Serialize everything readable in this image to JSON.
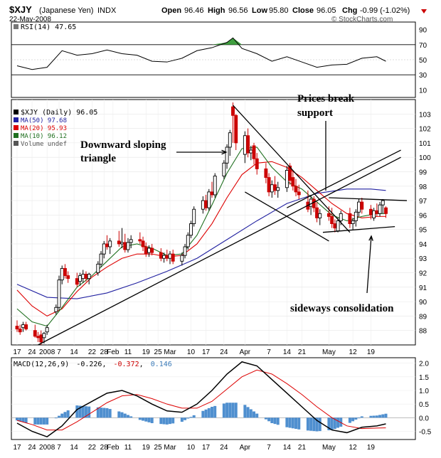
{
  "header": {
    "symbol": "$XJY",
    "name": "(Japanese Yen)",
    "exchange": "INDX",
    "date": "22-May-2008",
    "open_label": "Open",
    "open": "96.46",
    "high_label": "High",
    "high": "96.56",
    "low_label": "Low",
    "low": "95.80",
    "close_label": "Close",
    "close": "96.05",
    "chg_label": "Chg",
    "chg": "-0.99 (-1.02%)",
    "watermark": "© StockCharts.com"
  },
  "colors": {
    "up": "#000000",
    "down": "#cc0000",
    "ma50": "#2020a0",
    "ma20": "#dd0000",
    "ma10": "#207020",
    "macd_hist": "#4f8fcf",
    "rsi_overbought_fill": "#3f9f3f",
    "annotation": "#000000"
  },
  "rsi_panel": {
    "label": "RSI(14) 47.65",
    "ticks": [
      "90",
      "70",
      "50",
      "30",
      "10"
    ]
  },
  "price_panel": {
    "legend": [
      {
        "text": "$XJY (Daily) 96.05",
        "color": "#000000"
      },
      {
        "text": "MA(50) 97.68",
        "color": "#2020a0"
      },
      {
        "text": "MA(20) 95.93",
        "color": "#dd0000"
      },
      {
        "text": "MA(10) 96.12",
        "color": "#207020"
      },
      {
        "text": "Volume undef",
        "color": "#555555"
      }
    ],
    "ticks": [
      "103",
      "102",
      "101",
      "100",
      "99",
      "98",
      "97",
      "96",
      "95",
      "94",
      "93",
      "92",
      "91",
      "90",
      "89",
      "88"
    ]
  },
  "macd_panel": {
    "label": "MACD(12,26,9)",
    "values": [
      "-0.226",
      "-0.372",
      "0.146"
    ],
    "ticks": [
      "2.0",
      "1.5",
      "1.0",
      "0.5",
      "0.0",
      "-0.5"
    ]
  },
  "x_axis": {
    "labels": [
      "17",
      "24",
      "2008",
      "7",
      "14",
      "22",
      "28",
      "Feb",
      "11",
      "19",
      "25",
      "Mar",
      "10",
      "17",
      "24",
      "Apr",
      "7",
      "14",
      "21",
      "May",
      "12",
      "19"
    ]
  },
  "annotations": {
    "triangle": "Downward sloping\ntriangle",
    "break": "Prices break\nsupport",
    "consolidation": "sideways consolidation"
  },
  "chart_data": {
    "type": "candlestick",
    "title": "$XJY (Japanese Yen) INDX",
    "date": "22-May-2008",
    "y_range": [
      87,
      104
    ],
    "rsi_range": [
      0,
      100
    ],
    "macd_range": [
      -0.8,
      2.2
    ],
    "x_range_days": [
      0,
      130
    ],
    "candles": [
      {
        "d": 0,
        "o": 88.3,
        "h": 88.7,
        "l": 87.9,
        "c": 88.1
      },
      {
        "d": 1,
        "o": 88.1,
        "h": 88.4,
        "l": 87.7,
        "c": 87.9
      },
      {
        "d": 2,
        "o": 88.2,
        "h": 88.6,
        "l": 87.9,
        "c": 88.4
      },
      {
        "d": 3,
        "o": 88.4,
        "h": 88.6,
        "l": 88.0,
        "c": 88.1
      },
      {
        "d": 6,
        "o": 88.0,
        "h": 88.4,
        "l": 87.5,
        "c": 87.6
      },
      {
        "d": 7,
        "o": 87.6,
        "h": 87.9,
        "l": 87.2,
        "c": 87.5
      },
      {
        "d": 8,
        "o": 87.7,
        "h": 88.0,
        "l": 87.0,
        "c": 87.2
      },
      {
        "d": 9,
        "o": 87.5,
        "h": 87.9,
        "l": 87.1,
        "c": 87.8
      },
      {
        "d": 10,
        "o": 87.9,
        "h": 88.4,
        "l": 87.7,
        "c": 88.2
      },
      {
        "d": 13,
        "o": 89.3,
        "h": 89.8,
        "l": 89.1,
        "c": 89.6
      },
      {
        "d": 14,
        "o": 89.6,
        "h": 91.8,
        "l": 89.4,
        "c": 91.5
      },
      {
        "d": 15,
        "o": 91.5,
        "h": 92.5,
        "l": 91.2,
        "c": 92.3
      },
      {
        "d": 16,
        "o": 92.3,
        "h": 92.6,
        "l": 91.6,
        "c": 91.8
      },
      {
        "d": 17,
        "o": 91.8,
        "h": 92.1,
        "l": 91.3,
        "c": 91.6
      },
      {
        "d": 20,
        "o": 91.6,
        "h": 92.0,
        "l": 91.0,
        "c": 91.2
      },
      {
        "d": 21,
        "o": 91.4,
        "h": 92.0,
        "l": 91.1,
        "c": 91.8
      },
      {
        "d": 22,
        "o": 91.6,
        "h": 92.2,
        "l": 91.3,
        "c": 91.9
      },
      {
        "d": 23,
        "o": 91.9,
        "h": 92.1,
        "l": 91.4,
        "c": 91.6
      },
      {
        "d": 24,
        "o": 91.6,
        "h": 92.0,
        "l": 91.2,
        "c": 91.9
      },
      {
        "d": 27,
        "o": 92.0,
        "h": 92.8,
        "l": 91.8,
        "c": 92.6
      },
      {
        "d": 28,
        "o": 92.6,
        "h": 93.5,
        "l": 92.4,
        "c": 93.3
      },
      {
        "d": 29,
        "o": 93.3,
        "h": 94.2,
        "l": 93.0,
        "c": 94.0
      },
      {
        "d": 30,
        "o": 94.0,
        "h": 94.6,
        "l": 93.6,
        "c": 93.8
      },
      {
        "d": 31,
        "o": 93.8,
        "h": 94.4,
        "l": 93.3,
        "c": 94.2
      },
      {
        "d": 34,
        "o": 94.2,
        "h": 94.9,
        "l": 93.8,
        "c": 94.0
      },
      {
        "d": 35,
        "o": 94.0,
        "h": 95.1,
        "l": 93.7,
        "c": 94.1
      },
      {
        "d": 36,
        "o": 94.1,
        "h": 94.7,
        "l": 93.4,
        "c": 93.6
      },
      {
        "d": 37,
        "o": 93.6,
        "h": 94.4,
        "l": 93.4,
        "c": 94.1
      },
      {
        "d": 38,
        "o": 94.1,
        "h": 94.6,
        "l": 93.7,
        "c": 94.3
      },
      {
        "d": 41,
        "o": 94.3,
        "h": 94.8,
        "l": 94.0,
        "c": 94.2
      },
      {
        "d": 42,
        "o": 94.2,
        "h": 94.5,
        "l": 93.5,
        "c": 93.8
      },
      {
        "d": 43,
        "o": 93.8,
        "h": 94.1,
        "l": 93.1,
        "c": 93.3
      },
      {
        "d": 44,
        "o": 93.4,
        "h": 93.9,
        "l": 93.1,
        "c": 93.7
      },
      {
        "d": 45,
        "o": 93.7,
        "h": 94.0,
        "l": 93.2,
        "c": 93.4
      },
      {
        "d": 48,
        "o": 93.4,
        "h": 93.7,
        "l": 92.8,
        "c": 93.0
      },
      {
        "d": 49,
        "o": 93.0,
        "h": 93.4,
        "l": 92.7,
        "c": 93.2
      },
      {
        "d": 50,
        "o": 93.2,
        "h": 93.6,
        "l": 92.8,
        "c": 93.0
      },
      {
        "d": 51,
        "o": 93.0,
        "h": 93.5,
        "l": 92.6,
        "c": 93.3
      },
      {
        "d": 52,
        "o": 93.3,
        "h": 93.6,
        "l": 92.6,
        "c": 92.8
      },
      {
        "d": 55,
        "o": 92.8,
        "h": 93.4,
        "l": 92.5,
        "c": 93.2
      },
      {
        "d": 56,
        "o": 93.2,
        "h": 94.0,
        "l": 93.0,
        "c": 93.8
      },
      {
        "d": 57,
        "o": 93.8,
        "h": 94.8,
        "l": 93.6,
        "c": 94.6
      },
      {
        "d": 58,
        "o": 94.6,
        "h": 95.6,
        "l": 94.4,
        "c": 95.4
      },
      {
        "d": 59,
        "o": 95.4,
        "h": 96.6,
        "l": 95.2,
        "c": 96.4
      },
      {
        "d": 62,
        "o": 96.4,
        "h": 97.3,
        "l": 96.1,
        "c": 97.0
      },
      {
        "d": 63,
        "o": 97.0,
        "h": 97.4,
        "l": 96.3,
        "c": 96.5
      },
      {
        "d": 64,
        "o": 96.5,
        "h": 97.8,
        "l": 96.3,
        "c": 97.6
      },
      {
        "d": 65,
        "o": 97.6,
        "h": 98.3,
        "l": 97.2,
        "c": 97.4
      },
      {
        "d": 66,
        "o": 97.4,
        "h": 98.9,
        "l": 97.2,
        "c": 98.7
      },
      {
        "d": 69,
        "o": 98.7,
        "h": 99.8,
        "l": 98.5,
        "c": 99.6
      },
      {
        "d": 70,
        "o": 99.6,
        "h": 100.9,
        "l": 99.2,
        "c": 100.7
      },
      {
        "d": 71,
        "o": 100.7,
        "h": 101.9,
        "l": 100.1,
        "c": 101.7
      },
      {
        "d": 72,
        "o": 103.5,
        "h": 103.8,
        "l": 101.0,
        "c": 102.9
      },
      {
        "d": 73,
        "o": 102.9,
        "h": 103.0,
        "l": 100.5,
        "c": 101.0
      },
      {
        "d": 76,
        "o": 100.2,
        "h": 101.8,
        "l": 99.6,
        "c": 101.5
      },
      {
        "d": 77,
        "o": 101.5,
        "h": 102.0,
        "l": 100.0,
        "c": 100.3
      },
      {
        "d": 78,
        "o": 100.3,
        "h": 100.8,
        "l": 99.8,
        "c": 100.5
      },
      {
        "d": 79,
        "o": 100.8,
        "h": 101.0,
        "l": 99.5,
        "c": 99.9
      },
      {
        "d": 80,
        "o": 99.9,
        "h": 100.3,
        "l": 98.8,
        "c": 99.2
      },
      {
        "d": 83,
        "o": 99.2,
        "h": 99.6,
        "l": 98.2,
        "c": 98.6
      },
      {
        "d": 84,
        "o": 98.6,
        "h": 98.9,
        "l": 97.3,
        "c": 97.6
      },
      {
        "d": 85,
        "o": 97.6,
        "h": 98.4,
        "l": 97.2,
        "c": 98.1
      },
      {
        "d": 86,
        "o": 98.1,
        "h": 98.7,
        "l": 97.4,
        "c": 97.7
      },
      {
        "d": 87,
        "o": 97.7,
        "h": 98.3,
        "l": 97.2,
        "c": 97.9
      },
      {
        "d": 90,
        "o": 97.9,
        "h": 99.4,
        "l": 97.6,
        "c": 99.1
      },
      {
        "d": 91,
        "o": 99.4,
        "h": 99.6,
        "l": 98.1,
        "c": 98.4
      },
      {
        "d": 92,
        "o": 98.6,
        "h": 99.1,
        "l": 97.7,
        "c": 98.0
      },
      {
        "d": 93,
        "o": 98.0,
        "h": 98.5,
        "l": 97.3,
        "c": 97.6
      },
      {
        "d": 94,
        "o": 97.6,
        "h": 98.1,
        "l": 97.1,
        "c": 97.4
      },
      {
        "d": 97,
        "o": 96.9,
        "h": 97.7,
        "l": 96.2,
        "c": 96.4
      },
      {
        "d": 98,
        "o": 96.6,
        "h": 97.4,
        "l": 96.0,
        "c": 97.1
      },
      {
        "d": 99,
        "o": 97.1,
        "h": 97.3,
        "l": 96.2,
        "c": 96.5
      },
      {
        "d": 100,
        "o": 96.5,
        "h": 96.9,
        "l": 95.5,
        "c": 95.8
      },
      {
        "d": 101,
        "o": 95.8,
        "h": 96.4,
        "l": 95.3,
        "c": 96.1
      },
      {
        "d": 104,
        "o": 96.1,
        "h": 96.6,
        "l": 95.6,
        "c": 95.9
      },
      {
        "d": 105,
        "o": 95.9,
        "h": 96.5,
        "l": 95.1,
        "c": 95.4
      },
      {
        "d": 106,
        "o": 95.4,
        "h": 95.7,
        "l": 94.8,
        "c": 95.1
      },
      {
        "d": 107,
        "o": 94.9,
        "h": 95.8,
        "l": 94.8,
        "c": 95.6
      },
      {
        "d": 108,
        "o": 95.6,
        "h": 96.3,
        "l": 95.3,
        "c": 96.1
      },
      {
        "d": 111,
        "o": 96.1,
        "h": 96.5,
        "l": 95.1,
        "c": 95.4
      },
      {
        "d": 112,
        "o": 95.4,
        "h": 95.8,
        "l": 95.0,
        "c": 95.6
      },
      {
        "d": 113,
        "o": 95.6,
        "h": 96.4,
        "l": 95.2,
        "c": 96.2
      },
      {
        "d": 114,
        "o": 96.2,
        "h": 97.1,
        "l": 95.9,
        "c": 96.9
      },
      {
        "d": 115,
        "o": 96.9,
        "h": 97.2,
        "l": 96.1,
        "c": 96.4
      },
      {
        "d": 118,
        "o": 96.4,
        "h": 96.7,
        "l": 95.7,
        "c": 96.0
      },
      {
        "d": 119,
        "o": 95.8,
        "h": 96.5,
        "l": 95.6,
        "c": 96.3
      },
      {
        "d": 120,
        "o": 96.3,
        "h": 96.8,
        "l": 95.9,
        "c": 96.1
      },
      {
        "d": 121,
        "o": 96.1,
        "h": 96.9,
        "l": 95.9,
        "c": 96.7
      },
      {
        "d": 122,
        "o": 96.7,
        "h": 97.1,
        "l": 96.1,
        "c": 97.0
      },
      {
        "d": 123,
        "o": 96.5,
        "h": 96.6,
        "l": 95.8,
        "c": 96.1
      }
    ],
    "ma50": [
      [
        0,
        91.2
      ],
      [
        10,
        90.3
      ],
      [
        20,
        90.2
      ],
      [
        30,
        90.6
      ],
      [
        40,
        91.3
      ],
      [
        50,
        92.1
      ],
      [
        60,
        93.0
      ],
      [
        70,
        94.3
      ],
      [
        80,
        95.6
      ],
      [
        90,
        96.8
      ],
      [
        100,
        97.5
      ],
      [
        110,
        97.8
      ],
      [
        118,
        97.8
      ],
      [
        123,
        97.7
      ]
    ],
    "ma20": [
      [
        0,
        90.8
      ],
      [
        5,
        89.7
      ],
      [
        10,
        89.0
      ],
      [
        15,
        89.5
      ],
      [
        20,
        90.7
      ],
      [
        25,
        91.7
      ],
      [
        30,
        92.4
      ],
      [
        35,
        93.0
      ],
      [
        40,
        93.3
      ],
      [
        45,
        93.3
      ],
      [
        50,
        93.1
      ],
      [
        55,
        93.2
      ],
      [
        60,
        94.0
      ],
      [
        65,
        95.4
      ],
      [
        70,
        97.2
      ],
      [
        75,
        98.8
      ],
      [
        80,
        99.6
      ],
      [
        85,
        99.7
      ],
      [
        90,
        99.3
      ],
      [
        95,
        98.6
      ],
      [
        100,
        97.7
      ],
      [
        105,
        96.8
      ],
      [
        110,
        96.1
      ],
      [
        115,
        95.8
      ],
      [
        120,
        95.9
      ],
      [
        123,
        95.9
      ]
    ],
    "ma10": [
      [
        0,
        89.5
      ],
      [
        5,
        88.6
      ],
      [
        10,
        88.3
      ],
      [
        15,
        89.6
      ],
      [
        20,
        91.0
      ],
      [
        25,
        91.8
      ],
      [
        30,
        92.8
      ],
      [
        35,
        93.8
      ],
      [
        40,
        94.0
      ],
      [
        45,
        93.7
      ],
      [
        50,
        93.2
      ],
      [
        55,
        93.3
      ],
      [
        60,
        94.6
      ],
      [
        65,
        96.7
      ],
      [
        70,
        98.9
      ],
      [
        75,
        100.6
      ],
      [
        80,
        100.7
      ],
      [
        85,
        99.3
      ],
      [
        90,
        98.3
      ],
      [
        95,
        97.8
      ],
      [
        100,
        96.9
      ],
      [
        105,
        96.0
      ],
      [
        110,
        95.6
      ],
      [
        115,
        95.9
      ],
      [
        120,
        96.1
      ],
      [
        123,
        96.1
      ]
    ],
    "rsi": [
      [
        0,
        42
      ],
      [
        5,
        37
      ],
      [
        10,
        40
      ],
      [
        15,
        62
      ],
      [
        20,
        56
      ],
      [
        25,
        58
      ],
      [
        30,
        63
      ],
      [
        35,
        58
      ],
      [
        40,
        56
      ],
      [
        45,
        48
      ],
      [
        50,
        47
      ],
      [
        55,
        52
      ],
      [
        60,
        62
      ],
      [
        65,
        66
      ],
      [
        70,
        73
      ],
      [
        72,
        79
      ],
      [
        75,
        65
      ],
      [
        80,
        58
      ],
      [
        85,
        48
      ],
      [
        90,
        54
      ],
      [
        95,
        47
      ],
      [
        100,
        40
      ],
      [
        105,
        43
      ],
      [
        110,
        44
      ],
      [
        115,
        52
      ],
      [
        120,
        54
      ],
      [
        123,
        48
      ]
    ],
    "macd": [
      [
        0,
        -0.2
      ],
      [
        5,
        -0.5
      ],
      [
        10,
        -0.7
      ],
      [
        15,
        -0.3
      ],
      [
        20,
        0.3
      ],
      [
        25,
        0.6
      ],
      [
        30,
        0.9
      ],
      [
        35,
        1.0
      ],
      [
        40,
        0.8
      ],
      [
        45,
        0.5
      ],
      [
        50,
        0.25
      ],
      [
        55,
        0.2
      ],
      [
        60,
        0.5
      ],
      [
        65,
        1.0
      ],
      [
        70,
        1.6
      ],
      [
        75,
        2.05
      ],
      [
        80,
        1.9
      ],
      [
        85,
        1.4
      ],
      [
        90,
        0.9
      ],
      [
        95,
        0.4
      ],
      [
        100,
        -0.1
      ],
      [
        105,
        -0.45
      ],
      [
        110,
        -0.55
      ],
      [
        115,
        -0.35
      ],
      [
        120,
        -0.3
      ],
      [
        123,
        -0.226
      ]
    ],
    "signal": [
      [
        0,
        -0.1
      ],
      [
        5,
        -0.25
      ],
      [
        10,
        -0.45
      ],
      [
        15,
        -0.45
      ],
      [
        20,
        -0.15
      ],
      [
        25,
        0.2
      ],
      [
        30,
        0.55
      ],
      [
        35,
        0.8
      ],
      [
        40,
        0.85
      ],
      [
        45,
        0.7
      ],
      [
        50,
        0.5
      ],
      [
        55,
        0.35
      ],
      [
        60,
        0.35
      ],
      [
        65,
        0.6
      ],
      [
        70,
        1.05
      ],
      [
        75,
        1.5
      ],
      [
        80,
        1.75
      ],
      [
        85,
        1.6
      ],
      [
        90,
        1.25
      ],
      [
        95,
        0.85
      ],
      [
        100,
        0.4
      ],
      [
        105,
        0.0
      ],
      [
        110,
        -0.3
      ],
      [
        115,
        -0.4
      ],
      [
        120,
        -0.38
      ],
      [
        123,
        -0.372
      ]
    ],
    "x_tick_days": [
      0,
      5,
      10,
      14,
      19,
      25,
      29,
      32,
      37,
      43,
      47,
      51,
      58,
      63,
      69,
      76,
      84,
      90,
      95,
      104,
      112,
      118
    ]
  }
}
